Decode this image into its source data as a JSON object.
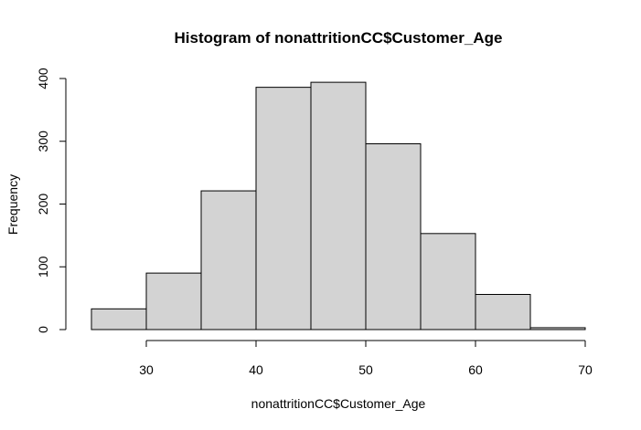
{
  "chart_data": {
    "type": "bar",
    "title": "Histogram of nonattritionCC$Customer_Age",
    "xlabel": "nonattritionCC$Customer_Age",
    "ylabel": "Frequency",
    "bins": [
      {
        "start": 25,
        "end": 30,
        "count": 33
      },
      {
        "start": 30,
        "end": 35,
        "count": 90
      },
      {
        "start": 35,
        "end": 40,
        "count": 221
      },
      {
        "start": 40,
        "end": 45,
        "count": 386
      },
      {
        "start": 45,
        "end": 50,
        "count": 394
      },
      {
        "start": 50,
        "end": 55,
        "count": 296
      },
      {
        "start": 55,
        "end": 60,
        "count": 153
      },
      {
        "start": 60,
        "end": 65,
        "count": 56
      },
      {
        "start": 65,
        "end": 70,
        "count": 3
      }
    ],
    "xticks": [
      30,
      40,
      50,
      60,
      70
    ],
    "yticks": [
      0,
      100,
      200,
      300,
      400
    ],
    "xlim": [
      25,
      70
    ],
    "ylim": [
      0,
      400
    ],
    "bar_color": "#d3d3d3",
    "grid": false,
    "legend": "none"
  }
}
